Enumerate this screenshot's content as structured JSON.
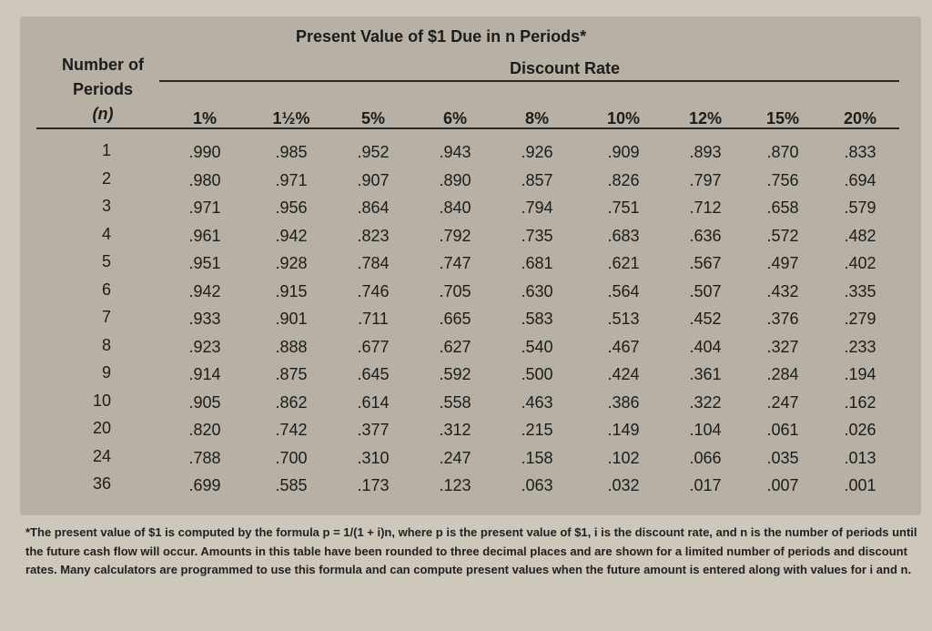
{
  "title": "Present Value of $1 Due in n Periods*",
  "periods_label": [
    "Number of",
    "Periods",
    "(n)"
  ],
  "rate_label": "Discount Rate",
  "rates": [
    "1%",
    "1½%",
    "5%",
    "6%",
    "8%",
    "10%",
    "12%",
    "15%",
    "20%"
  ],
  "rows": [
    {
      "n": "1",
      "values": [
        ".990",
        ".985",
        ".952",
        ".943",
        ".926",
        ".909",
        ".893",
        ".870",
        ".833"
      ]
    },
    {
      "n": "2",
      "values": [
        ".980",
        ".971",
        ".907",
        ".890",
        ".857",
        ".826",
        ".797",
        ".756",
        ".694"
      ]
    },
    {
      "n": "3",
      "values": [
        ".971",
        ".956",
        ".864",
        ".840",
        ".794",
        ".751",
        ".712",
        ".658",
        ".579"
      ]
    },
    {
      "n": "4",
      "values": [
        ".961",
        ".942",
        ".823",
        ".792",
        ".735",
        ".683",
        ".636",
        ".572",
        ".482"
      ]
    },
    {
      "n": "5",
      "values": [
        ".951",
        ".928",
        ".784",
        ".747",
        ".681",
        ".621",
        ".567",
        ".497",
        ".402"
      ]
    },
    {
      "n": "6",
      "values": [
        ".942",
        ".915",
        ".746",
        ".705",
        ".630",
        ".564",
        ".507",
        ".432",
        ".335"
      ]
    },
    {
      "n": "7",
      "values": [
        ".933",
        ".901",
        ".711",
        ".665",
        ".583",
        ".513",
        ".452",
        ".376",
        ".279"
      ]
    },
    {
      "n": "8",
      "values": [
        ".923",
        ".888",
        ".677",
        ".627",
        ".540",
        ".467",
        ".404",
        ".327",
        ".233"
      ]
    },
    {
      "n": "9",
      "values": [
        ".914",
        ".875",
        ".645",
        ".592",
        ".500",
        ".424",
        ".361",
        ".284",
        ".194"
      ]
    },
    {
      "n": "10",
      "values": [
        ".905",
        ".862",
        ".614",
        ".558",
        ".463",
        ".386",
        ".322",
        ".247",
        ".162"
      ]
    },
    {
      "n": "20",
      "values": [
        ".820",
        ".742",
        ".377",
        ".312",
        ".215",
        ".149",
        ".104",
        ".061",
        ".026"
      ]
    },
    {
      "n": "24",
      "values": [
        ".788",
        ".700",
        ".310",
        ".247",
        ".158",
        ".102",
        ".066",
        ".035",
        ".013"
      ]
    },
    {
      "n": "36",
      "values": [
        ".699",
        ".585",
        ".173",
        ".123",
        ".063",
        ".032",
        ".017",
        ".007",
        ".001"
      ]
    }
  ],
  "footnote": "*The present value of $1 is computed by the formula p = 1/(1 + i)n, where p is the present value of $1, i is the discount rate, and n is the number of periods until the future cash flow will occur. Amounts in this table have been rounded to three decimal places and are shown for a limited number of periods and discount rates. Many calculators are programmed to use this formula and can compute present values when the future amount is entered along with values for i and n.",
  "colors": {
    "table_background": "#b6b0a5",
    "page_background": "#cdc7bc"
  }
}
